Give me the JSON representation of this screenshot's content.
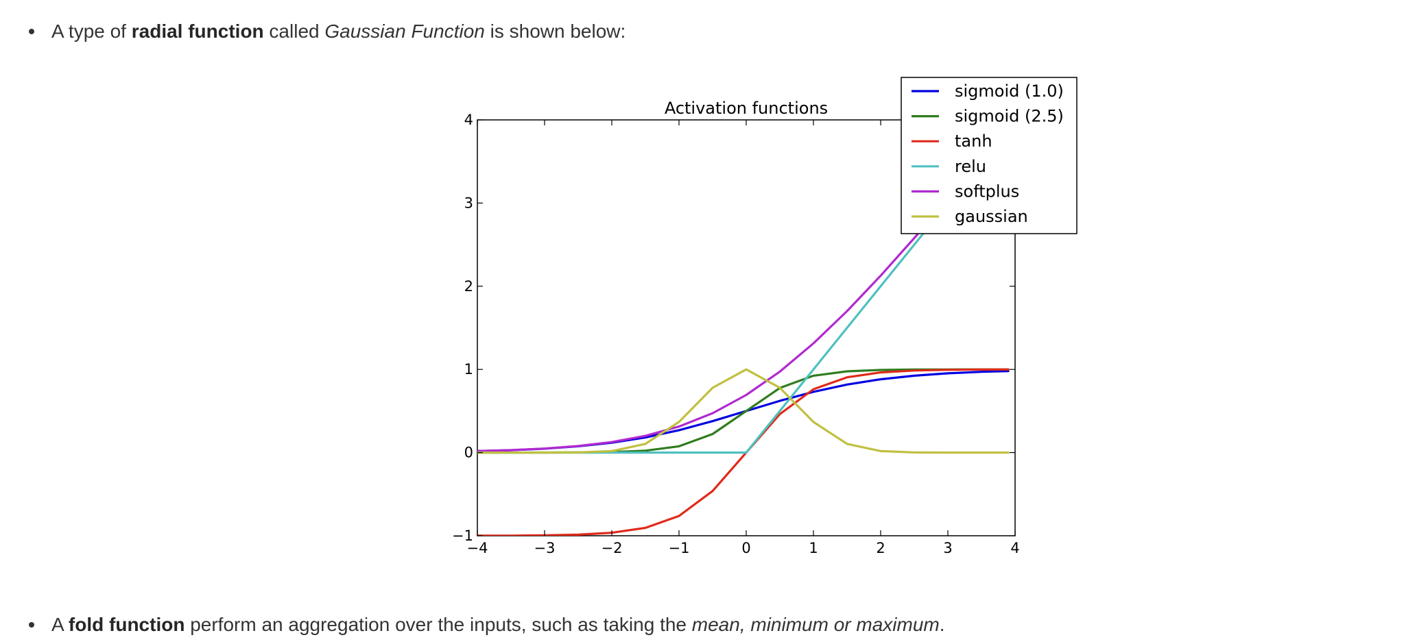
{
  "bullets": [
    {
      "parts": [
        {
          "text": "A type of ",
          "style": "normal"
        },
        {
          "text": "radial function",
          "style": "bold"
        },
        {
          "text": " called ",
          "style": "normal"
        },
        {
          "text": "Gaussian Function",
          "style": "italic"
        },
        {
          "text": " is shown below:",
          "style": "normal"
        }
      ]
    },
    {
      "parts": [
        {
          "text": "A ",
          "style": "normal"
        },
        {
          "text": "fold function",
          "style": "bold"
        },
        {
          "text": " perform an aggregation over the inputs, such as taking the ",
          "style": "normal"
        },
        {
          "text": "mean, minimum or maximum",
          "style": "italic"
        },
        {
          "text": ".",
          "style": "normal"
        }
      ]
    }
  ],
  "chart_data": {
    "type": "line",
    "title": "Activation functions",
    "xlabel": "",
    "ylabel": "",
    "xlim": [
      -4,
      4
    ],
    "ylim": [
      -1,
      4
    ],
    "x_ticks": [
      -4,
      -3,
      -2,
      -1,
      0,
      1,
      2,
      3,
      4
    ],
    "x_tick_labels": [
      "−4",
      "−3",
      "−2",
      "−1",
      "0",
      "1",
      "2",
      "3",
      "4"
    ],
    "y_ticks": [
      -1,
      0,
      1,
      2,
      3,
      4
    ],
    "y_tick_labels": [
      "−1",
      "0",
      "1",
      "2",
      "3",
      "4"
    ],
    "grid": false,
    "legend_position": "top-right",
    "x": [
      -4.0,
      -3.5,
      -3.0,
      -2.5,
      -2.0,
      -1.5,
      -1.0,
      -0.5,
      0.0,
      0.5,
      1.0,
      1.5,
      2.0,
      2.5,
      3.0,
      3.5,
      3.9
    ],
    "series": [
      {
        "name": "sigmoid (1.0)",
        "color": "#0000e0",
        "values": [
          0.018,
          0.029,
          0.047,
          0.076,
          0.119,
          0.182,
          0.269,
          0.378,
          0.5,
          0.622,
          0.731,
          0.818,
          0.881,
          0.924,
          0.953,
          0.971,
          0.98
        ]
      },
      {
        "name": "sigmoid (2.5)",
        "color": "#2e7d1e",
        "values": [
          0.0,
          0.0,
          0.001,
          0.002,
          0.007,
          0.023,
          0.076,
          0.223,
          0.5,
          0.777,
          0.924,
          0.977,
          0.993,
          0.998,
          0.999,
          1.0,
          1.0
        ]
      },
      {
        "name": "tanh",
        "color": "#e02a1a",
        "values": [
          -0.999,
          -0.998,
          -0.995,
          -0.987,
          -0.964,
          -0.905,
          -0.762,
          -0.462,
          0.0,
          0.462,
          0.762,
          0.905,
          0.964,
          0.987,
          0.995,
          0.998,
          0.999
        ]
      },
      {
        "name": "relu",
        "color": "#4fc0c0",
        "values": [
          0,
          0,
          0,
          0,
          0,
          0,
          0,
          0,
          0,
          0.5,
          1.0,
          1.5,
          2.0,
          2.5,
          3.0,
          3.5,
          3.9
        ]
      },
      {
        "name": "softplus",
        "color": "#b02ad0",
        "values": [
          0.018,
          0.03,
          0.049,
          0.079,
          0.127,
          0.201,
          0.313,
          0.474,
          0.693,
          0.974,
          1.313,
          1.701,
          2.127,
          2.579,
          3.049,
          3.53,
          3.92
        ]
      },
      {
        "name": "gaussian",
        "color": "#c0c040",
        "values": [
          0.0,
          0.0,
          0.0,
          0.002,
          0.018,
          0.105,
          0.368,
          0.779,
          1.0,
          0.779,
          0.368,
          0.105,
          0.018,
          0.002,
          0.0,
          0.0,
          0.0
        ]
      }
    ]
  }
}
